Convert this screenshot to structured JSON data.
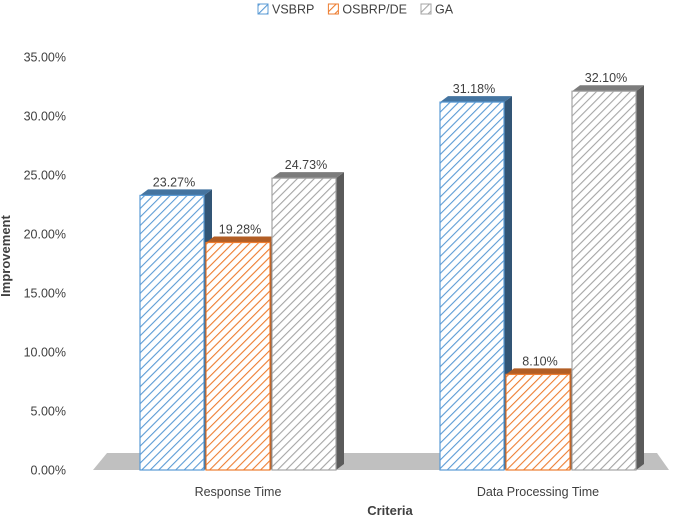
{
  "chart_data": {
    "type": "bar",
    "title": "",
    "xlabel": "Criteria",
    "ylabel": "Improvement",
    "categories": [
      "Response Time",
      "Data Processing Time"
    ],
    "series": [
      {
        "name": "VSBRP",
        "values": [
          23.27,
          31.18
        ],
        "labels": [
          "23.27%",
          "31.18%"
        ],
        "color": "#5b9bd5",
        "pattern": "diagonal-hatch"
      },
      {
        "name": "OSBRP/DE",
        "values": [
          19.28,
          8.1
        ],
        "labels": [
          "19.28%",
          "8.10%"
        ],
        "color": "#ed7d31",
        "pattern": "diagonal-hatch"
      },
      {
        "name": "GA",
        "values": [
          24.73,
          32.1
        ],
        "labels": [
          "24.73%",
          "32.10%"
        ],
        "color": "#a5a5a5",
        "pattern": "diagonal-hatch"
      }
    ],
    "ylim": [
      0,
      35
    ],
    "yticks": [
      "0.00%",
      "5.00%",
      "10.00%",
      "15.00%",
      "20.00%",
      "25.00%",
      "30.00%",
      "35.00%"
    ],
    "grid": false,
    "legend": "top-center",
    "style": "3d-clustered-column"
  }
}
